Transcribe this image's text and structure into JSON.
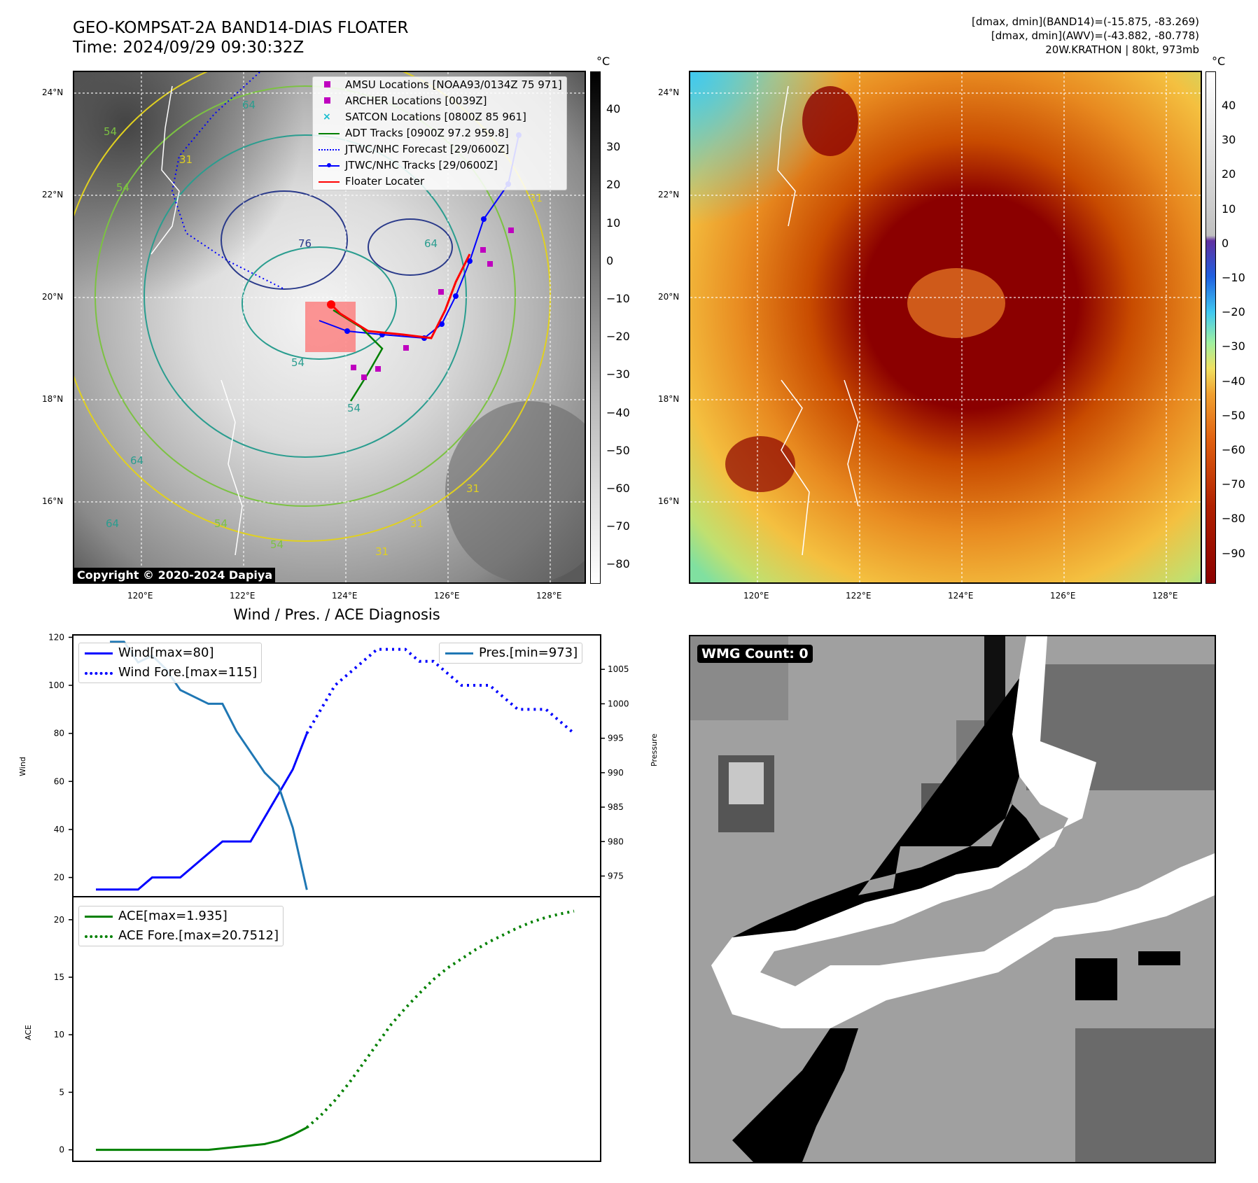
{
  "header": {
    "title_line1": "GEO-KOMPSAT-2A BAND14-DIAS FLOATER",
    "title_line2": "Time: 2024/09/29 09:30:32Z",
    "info_line1": "[dmax, dmin](BAND14)=(-15.875, -83.269)",
    "info_line2": "[dmax, dmin](AWV)=(-43.882, -80.778)",
    "info_line3": "20W.KRATHON | 80kt, 973mb"
  },
  "map_axes": {
    "lat_labels": [
      "24°N",
      "22°N",
      "20°N",
      "18°N",
      "16°N"
    ],
    "lon_labels": [
      "120°E",
      "122°E",
      "124°E",
      "126°E",
      "128°E"
    ]
  },
  "colorbar_left": {
    "unit": "°C",
    "ticks": [
      "40",
      "30",
      "20",
      "10",
      "0",
      "−10",
      "−20",
      "−30",
      "−40",
      "−50",
      "−60",
      "−70",
      "−80"
    ]
  },
  "colorbar_right": {
    "unit": "°C",
    "ticks": [
      "40",
      "30",
      "20",
      "10",
      "0",
      "−10",
      "−20",
      "−30",
      "−40",
      "−50",
      "−60",
      "−70",
      "−80",
      "−90"
    ]
  },
  "legend_map": [
    {
      "label": "AMSU Locations [NOAA93/0134Z 75 971]",
      "key": "square",
      "color": "#bf00bf"
    },
    {
      "label": "ARCHER Locations [0039Z]",
      "key": "square",
      "color": "#bf00bf"
    },
    {
      "label": "SATCON Locations [0800Z 85 961]",
      "key": "x",
      "color": "#17becf"
    },
    {
      "label": "ADT Tracks [0900Z 97.2 959.8]",
      "key": "line",
      "color": "#008000"
    },
    {
      "label": "JTWC/NHC Forecast [29/0600Z]",
      "key": "dotted",
      "color": "#0000ff"
    },
    {
      "label": "JTWC/NHC Tracks [29/0600Z]",
      "key": "dotline",
      "color": "#0000ff"
    },
    {
      "label": "Floater Locater",
      "key": "line",
      "color": "#ff0000"
    }
  ],
  "copyright": "Copyright © 2020-2024 Dapiya",
  "contour_labels": [
    "64",
    "54",
    "54",
    "31",
    "76",
    "64",
    "64",
    "54",
    "64",
    "54",
    "54",
    "31",
    "31",
    "31",
    "54",
    "31"
  ],
  "wmg_count": "WMG Count: 0",
  "colors": {
    "wind": "#0000ff",
    "pressure": "#1f77b4",
    "ace": "#008000",
    "floater": "#ff0000",
    "amsu": "#bf00bf",
    "satcon": "#17becf"
  },
  "chart_data": [
    {
      "type": "line",
      "title": "Wind / Pres. / ACE Diagnosis",
      "ylabel": "Wind",
      "ylim": [
        12,
        121
      ],
      "yticks": [
        20,
        40,
        60,
        80,
        100,
        120
      ],
      "x": [
        0,
        1,
        2,
        3,
        4,
        5,
        6,
        7,
        8,
        9,
        10,
        11,
        12,
        13,
        14,
        15,
        16,
        17,
        18,
        19,
        20,
        21,
        22,
        23,
        24,
        25,
        26,
        27,
        28,
        29,
        30,
        31,
        32,
        33,
        34
      ],
      "series": [
        {
          "name": "Wind[max=80]",
          "style": "solid",
          "x": [
            0,
            1,
            2,
            3,
            4,
            5,
            6,
            7,
            8,
            9,
            10,
            11,
            12,
            13,
            14,
            15
          ],
          "values": [
            15,
            15,
            15,
            15,
            20,
            20,
            20,
            25,
            30,
            35,
            35,
            35,
            45,
            55,
            65,
            80
          ]
        },
        {
          "name": "Wind Fore.[max=115]",
          "style": "dotted",
          "x": [
            15,
            16,
            17,
            18,
            19,
            20,
            21,
            22,
            23,
            24,
            25,
            26,
            27,
            28,
            29,
            30,
            31,
            32,
            33,
            34
          ],
          "values": [
            80,
            90,
            100,
            105,
            110,
            115,
            115,
            115,
            110,
            110,
            105,
            100,
            100,
            100,
            95,
            90,
            90,
            90,
            85,
            80
          ]
        }
      ]
    },
    {
      "type": "line",
      "ylabel": "Pressure",
      "ylim": [
        972,
        1010
      ],
      "yticks": [
        975,
        980,
        985,
        990,
        995,
        1000,
        1005
      ],
      "series": [
        {
          "name": "Pres.[min=973]",
          "style": "solid",
          "x": [
            1,
            2,
            3,
            4,
            5,
            6,
            7,
            8,
            9,
            10,
            11,
            12,
            13,
            14,
            15
          ],
          "values": [
            1009,
            1009,
            1006,
            1007,
            1005,
            1002,
            1001,
            1000,
            1000,
            996,
            993,
            990,
            988,
            982,
            973
          ]
        }
      ]
    },
    {
      "type": "line",
      "ylabel": "ACE",
      "ylim": [
        -1,
        22
      ],
      "yticks": [
        0,
        5,
        10,
        15,
        20
      ],
      "series": [
        {
          "name": "ACE[max=1.935]",
          "style": "solid",
          "x": [
            0,
            4,
            8,
            10,
            12,
            13,
            14,
            15
          ],
          "values": [
            0,
            0,
            0,
            0.25,
            0.5,
            0.8,
            1.3,
            1.935
          ]
        },
        {
          "name": "ACE Fore.[max=20.7512]",
          "style": "dotted",
          "x": [
            15,
            16,
            17,
            18,
            19,
            20,
            21,
            22,
            23,
            24,
            25,
            26,
            27,
            28,
            29,
            30,
            31,
            32,
            33,
            34
          ],
          "values": [
            1.935,
            3,
            4.3,
            5.8,
            7.5,
            9.2,
            10.9,
            12.3,
            13.6,
            14.8,
            15.8,
            16.6,
            17.4,
            18.1,
            18.7,
            19.3,
            19.8,
            20.2,
            20.5,
            20.75
          ]
        }
      ]
    }
  ]
}
